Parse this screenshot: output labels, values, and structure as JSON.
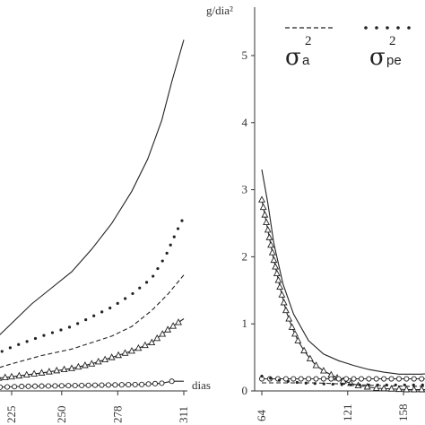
{
  "chart_data": [
    {
      "type": "line",
      "panel": "left",
      "x_unit_label": "dias",
      "x_ticks": [
        "225",
        "250",
        "278",
        "311"
      ],
      "xlim": [
        210,
        315
      ],
      "ylim": [
        0,
        5.4
      ],
      "series": [
        {
          "style": "solid",
          "points": [
            [
              209,
              0.55
            ],
            [
              215,
              0.75
            ],
            [
              225,
              1.05
            ],
            [
              235,
              1.35
            ],
            [
              245,
              1.6
            ],
            [
              255,
              1.85
            ],
            [
              265,
              2.2
            ],
            [
              275,
              2.6
            ],
            [
              285,
              3.1
            ],
            [
              293,
              3.6
            ],
            [
              300,
              4.2
            ],
            [
              305,
              4.8
            ],
            [
              311,
              5.45
            ]
          ]
        },
        {
          "style": "dotted",
          "points": [
            [
              212,
              0.5
            ],
            [
              225,
              0.68
            ],
            [
              240,
              0.85
            ],
            [
              255,
              1.0
            ],
            [
              265,
              1.15
            ],
            [
              275,
              1.3
            ],
            [
              285,
              1.5
            ],
            [
              295,
              1.75
            ],
            [
              302,
              2.1
            ],
            [
              307,
              2.45
            ],
            [
              311,
              2.7
            ]
          ]
        },
        {
          "style": "dashed",
          "points": [
            [
              212,
              0.3
            ],
            [
              225,
              0.42
            ],
            [
              240,
              0.55
            ],
            [
              255,
              0.65
            ],
            [
              265,
              0.75
            ],
            [
              275,
              0.85
            ],
            [
              285,
              1.0
            ],
            [
              295,
              1.25
            ],
            [
              303,
              1.5
            ],
            [
              311,
              1.8
            ]
          ]
        },
        {
          "style": "solid-triangle",
          "points": [
            [
              212,
              0.18
            ],
            [
              225,
              0.22
            ],
            [
              240,
              0.28
            ],
            [
              255,
              0.35
            ],
            [
              265,
              0.42
            ],
            [
              275,
              0.52
            ],
            [
              285,
              0.62
            ],
            [
              295,
              0.75
            ],
            [
              303,
              0.95
            ],
            [
              311,
              1.12
            ]
          ]
        },
        {
          "style": "solid-circle",
          "points": [
            [
              212,
              0.05
            ],
            [
              230,
              0.07
            ],
            [
              250,
              0.08
            ],
            [
              270,
              0.09
            ],
            [
              290,
              0.1
            ],
            [
              300,
              0.12
            ],
            [
              305,
              0.15
            ],
            [
              311,
              0.15
            ]
          ]
        }
      ]
    },
    {
      "type": "line",
      "panel": "right",
      "y_unit_label": "g/dia²",
      "y_ticks": [
        "0",
        "1",
        "2",
        "3",
        "4",
        "5"
      ],
      "x_ticks": [
        "64",
        "121",
        "158"
      ],
      "xlim": [
        55,
        200
      ],
      "ylim": [
        0,
        5.4
      ],
      "legend": [
        {
          "style": "dashed",
          "symbol": "σ",
          "superscript": "2",
          "subscript": "a"
        },
        {
          "style": "dotted",
          "symbol": "σ",
          "superscript": "2",
          "subscript": "pe"
        }
      ],
      "series": [
        {
          "style": "solid",
          "points": [
            [
              64,
              3.3
            ],
            [
              68,
              2.8
            ],
            [
              72,
              2.2
            ],
            [
              78,
              1.6
            ],
            [
              85,
              1.15
            ],
            [
              95,
              0.75
            ],
            [
              105,
              0.55
            ],
            [
              115,
              0.45
            ],
            [
              125,
              0.38
            ],
            [
              135,
              0.32
            ],
            [
              145,
              0.28
            ],
            [
              155,
              0.25
            ],
            [
              170,
              0.25
            ],
            [
              185,
              0.28
            ],
            [
              198,
              0.32
            ]
          ]
        },
        {
          "style": "solid-triangle",
          "points": [
            [
              64,
              2.85
            ],
            [
              68,
              2.4
            ],
            [
              72,
              1.95
            ],
            [
              76,
              1.55
            ],
            [
              80,
              1.2
            ],
            [
              84,
              0.95
            ],
            [
              88,
              0.75
            ],
            [
              92,
              0.6
            ],
            [
              96,
              0.48
            ],
            [
              100,
              0.38
            ],
            [
              105,
              0.3
            ],
            [
              110,
              0.24
            ],
            [
              118,
              0.15
            ],
            [
              128,
              0.08
            ],
            [
              140,
              0.04
            ],
            [
              160,
              0.02
            ],
            [
              180,
              0.02
            ],
            [
              198,
              0.02
            ]
          ]
        },
        {
          "style": "solid-circle",
          "points": [
            [
              64,
              0.18
            ],
            [
              80,
              0.18
            ],
            [
              100,
              0.18
            ],
            [
              120,
              0.18
            ],
            [
              140,
              0.18
            ],
            [
              160,
              0.18
            ],
            [
              180,
              0.18
            ],
            [
              198,
              0.18
            ]
          ]
        },
        {
          "style": "dashed",
          "points": [
            [
              64,
              0.12
            ],
            [
              80,
              0.12
            ],
            [
              100,
              0.12
            ],
            [
              120,
              0.1
            ],
            [
              140,
              0.08
            ],
            [
              160,
              0.07
            ],
            [
              180,
              0.07
            ],
            [
              198,
              0.07
            ]
          ]
        },
        {
          "style": "dotted",
          "points": [
            [
              64,
              0.22
            ],
            [
              75,
              0.16
            ],
            [
              90,
              0.12
            ],
            [
              110,
              0.1
            ],
            [
              125,
              0.09
            ],
            [
              140,
              0.09
            ],
            [
              160,
              0.09
            ],
            [
              180,
              0.09
            ],
            [
              198,
              0.09
            ]
          ]
        }
      ]
    }
  ]
}
